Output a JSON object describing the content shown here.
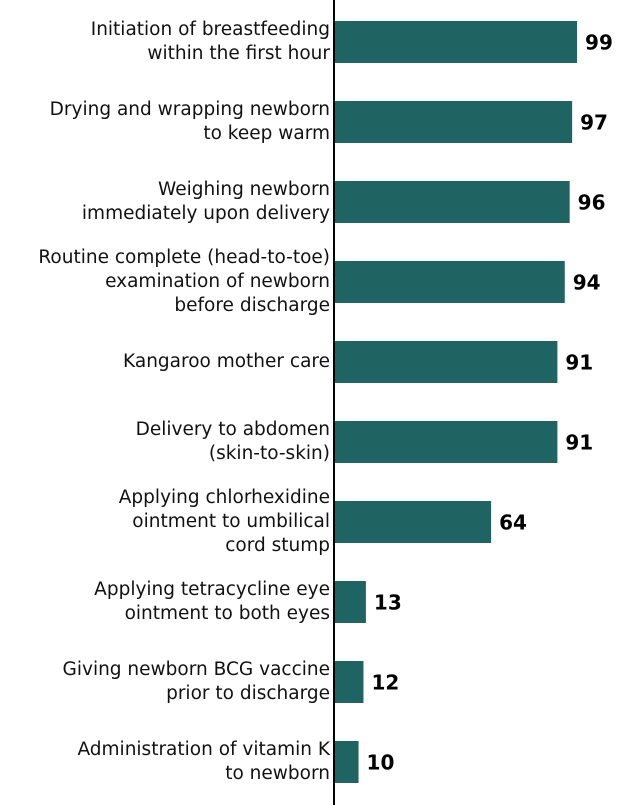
{
  "chart_data": {
    "type": "barh",
    "categories": [
      "Initiation of breastfeeding\nwithin the first hour",
      "Drying and wrapping newborn\nto keep warm",
      "Weighing newborn\nimmediately upon delivery",
      "Routine complete (head-to-toe)\nexamination of newborn\nbefore discharge",
      "Kangaroo mother care",
      "Delivery to abdomen\n(skin-to-skin)",
      "Applying chlorhexidine\nointment to umbilical\ncord stump",
      "Applying tetracycline eye\nointment to both eyes",
      "Giving newborn BCG vaccine\nprior to discharge",
      "Administration of vitamin K\nto newborn"
    ],
    "values": [
      99,
      97,
      96,
      94,
      91,
      91,
      64,
      13,
      12,
      10
    ],
    "color": "#1f6462",
    "xlim": [
      0,
      100
    ]
  }
}
